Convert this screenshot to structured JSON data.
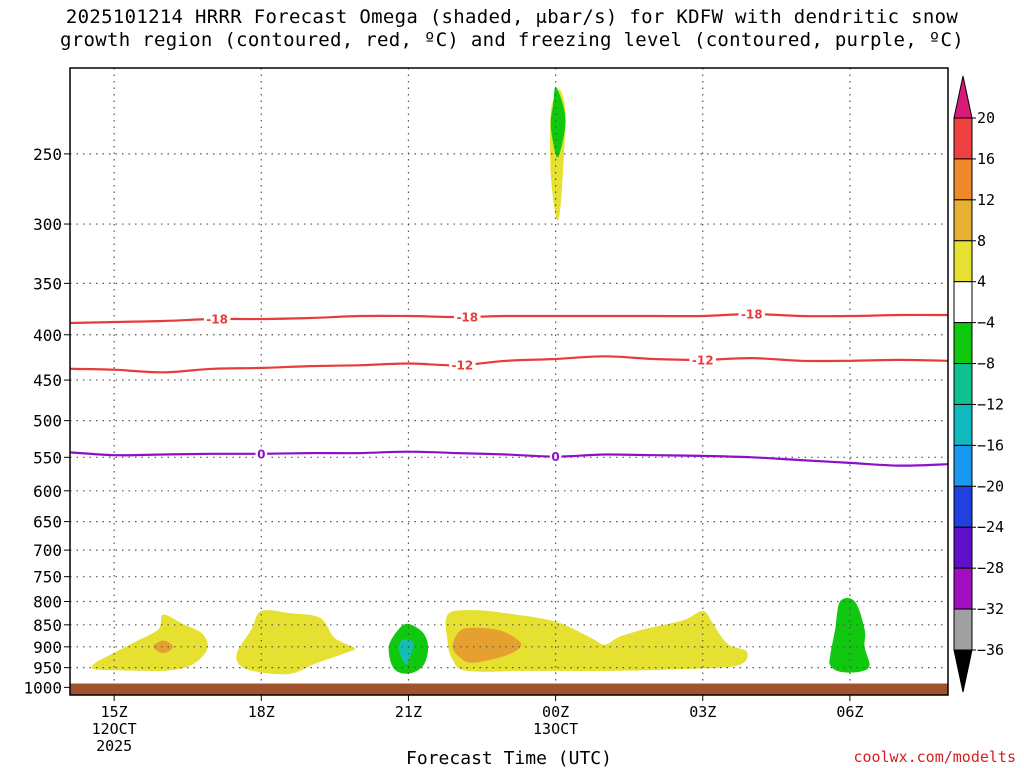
{
  "title": {
    "line1": "2025101214 HRRR Forecast Omega (shaded, μbar/s) for KDFW with dendritic snow",
    "line2": "growth region (contoured, red, ºC) and freezing level (contoured, purple, ºC)"
  },
  "credit": "coolwx.com/modelts",
  "chart_data": {
    "type": "contour",
    "title": "2025101214 HRRR Forecast Omega (shaded, μbar/s) for KDFW with dendritic snow growth region (contoured, red, ºC) and freezing level (contoured, purple, ºC)",
    "xlabel": "Forecast Time (UTC)",
    "ylabel": "",
    "x_ticks": [
      {
        "hour": 15,
        "lines": [
          "15Z",
          "12OCT",
          "2025"
        ]
      },
      {
        "hour": 18,
        "lines": [
          "18Z"
        ]
      },
      {
        "hour": 21,
        "lines": [
          "21Z"
        ]
      },
      {
        "hour": 24,
        "lines": [
          "00Z",
          "13OCT"
        ]
      },
      {
        "hour": 27,
        "lines": [
          "03Z"
        ]
      },
      {
        "hour": 30,
        "lines": [
          "06Z"
        ]
      }
    ],
    "xlim": [
      14.1,
      32
    ],
    "y_ticks": [
      250,
      300,
      350,
      400,
      450,
      500,
      550,
      600,
      650,
      700,
      750,
      800,
      850,
      900,
      950,
      1000
    ],
    "ylim_hPa": [
      200,
      1020
    ],
    "y_scale": "log-pressure",
    "grid": true,
    "colorbar": {
      "labels": [
        "20",
        "16",
        "12",
        "8",
        "4",
        "−4",
        "−8",
        "−12",
        "−16",
        "−20",
        "−24",
        "−28",
        "−32",
        "−36"
      ],
      "colors": [
        "#d81a78",
        "#f04040",
        "#ee8a2a",
        "#e6b030",
        "#e6e030",
        "#ffffff",
        "#10c810",
        "#10c090",
        "#10b8c0",
        "#1898f0",
        "#2040e0",
        "#6010c8",
        "#a010c0",
        "#a0a0a0",
        "#000000"
      ]
    },
    "contours": [
      {
        "name": "-18",
        "color": "#e83c3c",
        "points": [
          [
            14.1,
            388
          ],
          [
            15,
            387
          ],
          [
            16,
            386
          ],
          [
            17,
            384
          ],
          [
            18,
            384
          ],
          [
            19,
            383
          ],
          [
            20,
            381
          ],
          [
            21,
            381
          ],
          [
            22,
            382
          ],
          [
            23,
            381
          ],
          [
            24,
            381
          ],
          [
            25,
            381
          ],
          [
            26,
            381
          ],
          [
            27,
            381
          ],
          [
            28,
            379
          ],
          [
            29,
            381
          ],
          [
            30,
            381
          ],
          [
            31,
            380
          ],
          [
            32,
            380
          ]
        ],
        "labels": [
          {
            "x": 17.1,
            "text": "-18"
          },
          {
            "x": 22.2,
            "text": "-18"
          },
          {
            "x": 28.0,
            "text": "-18"
          }
        ]
      },
      {
        "name": "-12",
        "color": "#e83c3c",
        "points": [
          [
            14.1,
            437
          ],
          [
            15,
            438
          ],
          [
            16,
            441
          ],
          [
            17,
            437
          ],
          [
            18,
            436
          ],
          [
            19,
            434
          ],
          [
            20,
            433
          ],
          [
            21,
            431
          ],
          [
            22,
            433
          ],
          [
            23,
            428
          ],
          [
            24,
            426
          ],
          [
            25,
            423
          ],
          [
            26,
            426
          ],
          [
            27,
            427
          ],
          [
            28,
            425
          ],
          [
            29,
            428
          ],
          [
            30,
            428
          ],
          [
            31,
            427
          ],
          [
            32,
            428
          ]
        ],
        "labels": [
          {
            "x": 22.1,
            "text": "-12"
          },
          {
            "x": 27.0,
            "text": "-12"
          }
        ]
      },
      {
        "name": "0",
        "color": "#8c10c8",
        "points": [
          [
            14.1,
            543
          ],
          [
            15,
            547
          ],
          [
            16,
            546
          ],
          [
            17,
            545
          ],
          [
            18,
            545
          ],
          [
            19,
            544
          ],
          [
            20,
            544
          ],
          [
            21,
            542
          ],
          [
            22,
            544
          ],
          [
            23,
            546
          ],
          [
            24,
            549
          ],
          [
            25,
            546
          ],
          [
            26,
            547
          ],
          [
            27,
            548
          ],
          [
            28,
            550
          ],
          [
            29,
            554
          ],
          [
            30,
            558
          ],
          [
            31,
            562
          ],
          [
            32,
            560
          ]
        ],
        "labels": [
          {
            "x": 18.0,
            "text": "0"
          },
          {
            "x": 24.0,
            "text": "0"
          }
        ]
      }
    ],
    "shaded_regions": [
      {
        "level": "4 to 8",
        "color": "#e6e030",
        "points": [
          [
            14.6,
            940
          ],
          [
            14.9,
            920
          ],
          [
            15.4,
            890
          ],
          [
            15.9,
            860
          ],
          [
            16.0,
            828
          ],
          [
            16.4,
            848
          ],
          [
            16.8,
            870
          ],
          [
            16.9,
            905
          ],
          [
            16.6,
            942
          ],
          [
            16.1,
            957
          ],
          [
            15.2,
            957
          ],
          [
            14.6,
            954
          ]
        ]
      },
      {
        "level": "8 to 12",
        "color": "#e6a030",
        "points": [
          [
            15.8,
            900
          ],
          [
            16.0,
            885
          ],
          [
            16.2,
            900
          ],
          [
            16.0,
            915
          ]
        ]
      },
      {
        "level": "4 to 8",
        "color": "#e6e030",
        "points": [
          [
            17.5,
            915
          ],
          [
            17.8,
            860
          ],
          [
            18.0,
            820
          ],
          [
            18.6,
            825
          ],
          [
            19.2,
            835
          ],
          [
            19.5,
            880
          ],
          [
            19.9,
            903
          ],
          [
            19.7,
            915
          ],
          [
            19.1,
            940
          ],
          [
            18.6,
            965
          ],
          [
            18.0,
            962
          ],
          [
            17.6,
            948
          ]
        ]
      },
      {
        "level": "-4 to -8",
        "color": "#10c810",
        "points": [
          [
            20.6,
            900
          ],
          [
            20.8,
            860
          ],
          [
            21.0,
            848
          ],
          [
            21.3,
            868
          ],
          [
            21.4,
            903
          ],
          [
            21.3,
            945
          ],
          [
            21.0,
            965
          ],
          [
            20.7,
            952
          ]
        ]
      },
      {
        "level": "-8 to -12",
        "color": "#10c0b0",
        "points": [
          [
            20.8,
            905
          ],
          [
            20.9,
            883
          ],
          [
            21.1,
            890
          ],
          [
            21.05,
            918
          ],
          [
            20.95,
            943
          ]
        ]
      },
      {
        "level": "4 to 8",
        "color": "#e6e030",
        "points": [
          [
            21.8,
            890
          ],
          [
            21.8,
            828
          ],
          [
            22.3,
            818
          ],
          [
            23.0,
            825
          ],
          [
            24.0,
            843
          ],
          [
            24.7,
            878
          ],
          [
            25.0,
            895
          ],
          [
            25.3,
            877
          ],
          [
            25.8,
            860
          ],
          [
            26.6,
            840
          ],
          [
            27.0,
            820
          ],
          [
            27.2,
            846
          ],
          [
            27.5,
            893
          ],
          [
            27.9,
            912
          ],
          [
            27.7,
            945
          ],
          [
            26.5,
            954
          ],
          [
            25.2,
            958
          ],
          [
            23.5,
            958
          ],
          [
            22.2,
            958
          ],
          [
            21.9,
            930
          ]
        ]
      },
      {
        "level": "8 to 12",
        "color": "#e6a030",
        "points": [
          [
            21.9,
            895
          ],
          [
            22.1,
            860
          ],
          [
            22.6,
            858
          ],
          [
            23.0,
            868
          ],
          [
            23.3,
            895
          ],
          [
            23.0,
            920
          ],
          [
            22.3,
            938
          ],
          [
            22.0,
            920
          ]
        ]
      },
      {
        "level": "-4 to -8",
        "color": "#10c810",
        "points": [
          [
            29.6,
            920
          ],
          [
            29.7,
            860
          ],
          [
            29.8,
            800
          ],
          [
            30.1,
            800
          ],
          [
            30.3,
            860
          ],
          [
            30.3,
            900
          ],
          [
            30.4,
            945
          ],
          [
            30.2,
            960
          ],
          [
            29.8,
            960
          ],
          [
            29.6,
            945
          ]
        ]
      },
      {
        "level": "4 to 8",
        "color": "#e6e030",
        "points": [
          [
            24.0,
            215
          ],
          [
            24.1,
            212
          ],
          [
            24.2,
            225
          ],
          [
            24.15,
            262
          ],
          [
            24.08,
            293
          ],
          [
            24.0,
            293
          ],
          [
            23.9,
            262
          ],
          [
            23.9,
            225
          ]
        ]
      },
      {
        "level": "-4 to -8",
        "color": "#10c810",
        "points": [
          [
            24.0,
            210
          ],
          [
            24.15,
            220
          ],
          [
            24.2,
            232
          ],
          [
            24.08,
            250
          ],
          [
            24.0,
            250
          ],
          [
            23.9,
            232
          ],
          [
            23.95,
            220
          ]
        ]
      }
    ],
    "ground": {
      "color": "#a0522d",
      "from_hPa": 990
    }
  }
}
